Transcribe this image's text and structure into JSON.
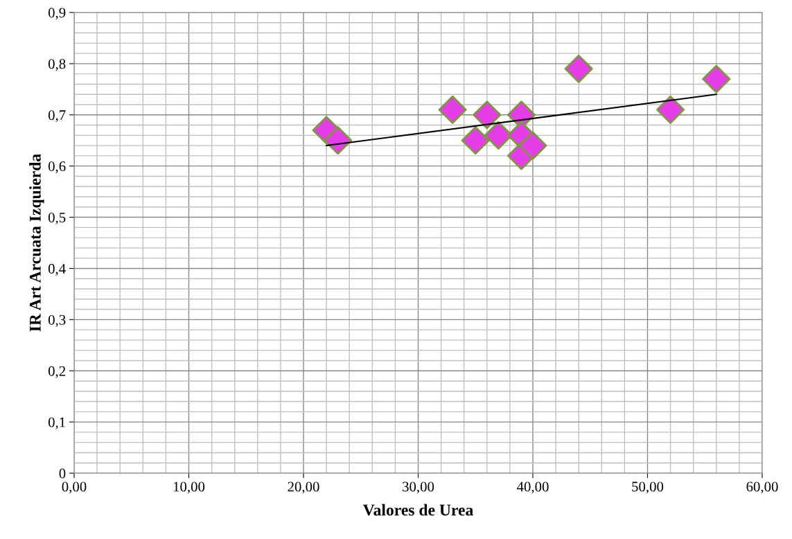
{
  "chart_data": {
    "type": "scatter",
    "xlabel": "Valores de Urea",
    "ylabel": "IR Art Arcuata Izquierda",
    "xlim": [
      0,
      60
    ],
    "ylim": [
      0,
      0.9
    ],
    "xticks": [
      {
        "value": 0,
        "label": "0,00"
      },
      {
        "value": 10,
        "label": "10,00"
      },
      {
        "value": 20,
        "label": "20,00"
      },
      {
        "value": 30,
        "label": "30,00"
      },
      {
        "value": 40,
        "label": "40,00"
      },
      {
        "value": 50,
        "label": "50,00"
      },
      {
        "value": 60,
        "label": "60,00"
      }
    ],
    "yticks": [
      0,
      {
        "value": 0.1,
        "label": "0,1"
      },
      {
        "value": 0.2,
        "label": "0,2"
      },
      {
        "value": 0.3,
        "label": "0,3"
      },
      {
        "value": 0.4,
        "label": "0,4"
      },
      {
        "value": 0.5,
        "label": "0,5"
      },
      {
        "value": 0.6,
        "label": "0,6"
      },
      {
        "value": 0.7,
        "label": "0,7"
      },
      {
        "value": 0.8,
        "label": "0,8"
      },
      {
        "value": 0.9,
        "label": "0,9"
      }
    ],
    "grid": true,
    "series": [
      {
        "marker": "diamond",
        "color": "#e53de8",
        "x": [
          22,
          23,
          33,
          35,
          36,
          37,
          39,
          39,
          39,
          40,
          44,
          52,
          56
        ],
        "values": [
          0.67,
          0.65,
          0.71,
          0.65,
          0.7,
          0.66,
          0.7,
          0.66,
          0.62,
          0.64,
          0.79,
          0.71,
          0.77
        ]
      },
      {
        "type": "line",
        "marker": "none",
        "color": "#000000",
        "x": [
          22,
          56
        ],
        "values": [
          0.64,
          0.74
        ]
      }
    ]
  }
}
